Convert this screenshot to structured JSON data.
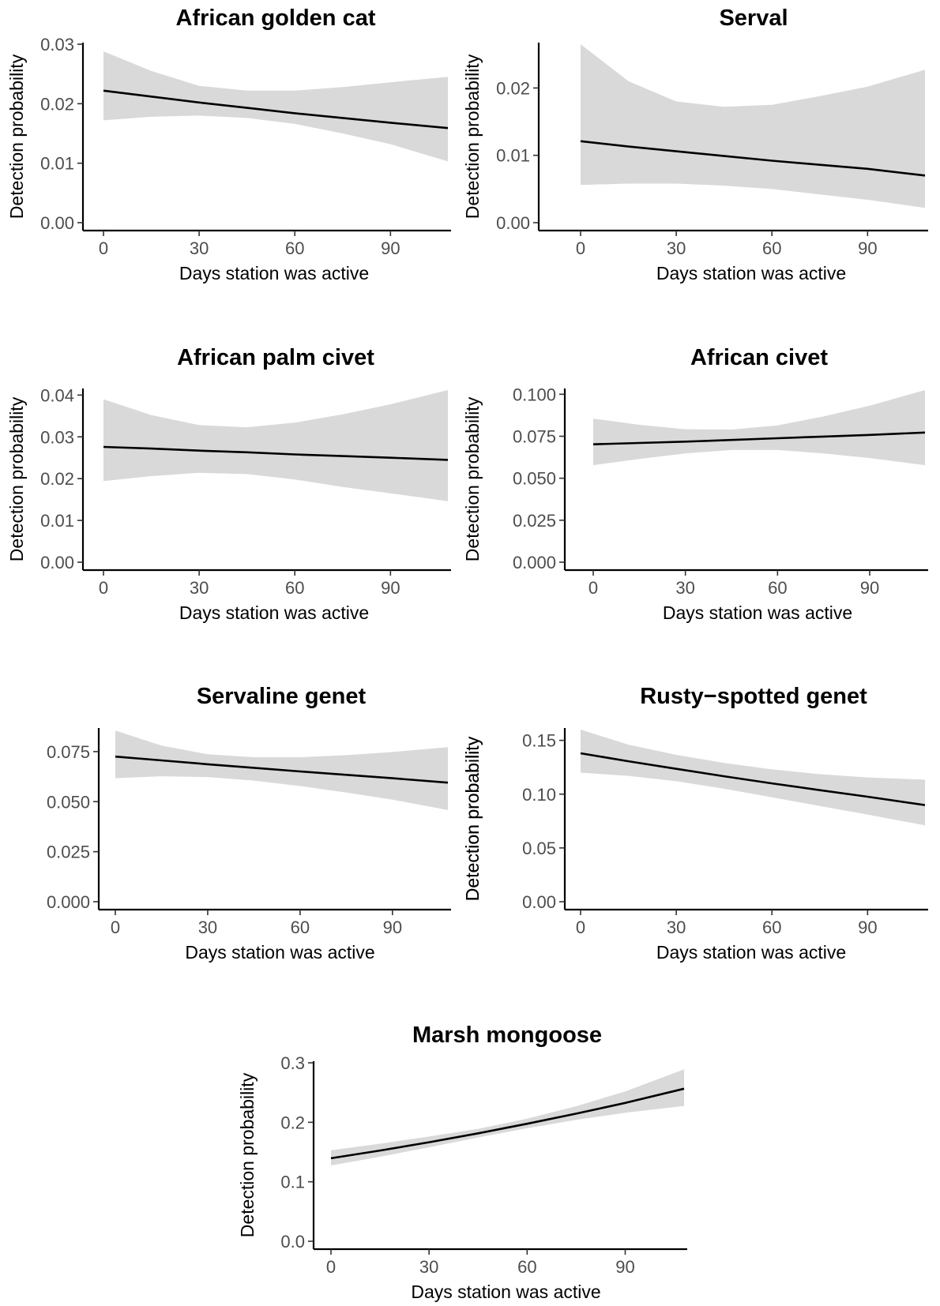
{
  "colors": {
    "band": "#d9d9d9",
    "line": "#000000",
    "axis": "#000000",
    "tick_text": "#4d4d4d"
  },
  "chart_data": [
    {
      "type": "line",
      "title": "African golden cat",
      "xlabel": "Days station was active",
      "ylabel": "Detection probability",
      "xlim": [
        0,
        108
      ],
      "ylim": [
        0,
        0.03
      ],
      "xticks": [
        0,
        30,
        60,
        90
      ],
      "xtick_labels": [
        "0",
        "30",
        "60",
        "90"
      ],
      "yticks": [
        0,
        0.01,
        0.02,
        0.03
      ],
      "ytick_labels": [
        "0.00",
        "0.01",
        "0.02",
        "0.03"
      ],
      "x": [
        0,
        15,
        30,
        45,
        60,
        75,
        90,
        108
      ],
      "y": [
        0.0222,
        0.0212,
        0.0202,
        0.0193,
        0.0184,
        0.0176,
        0.0168,
        0.0159
      ],
      "lower": [
        0.0172,
        0.0178,
        0.018,
        0.0176,
        0.0166,
        0.015,
        0.0132,
        0.0103
      ],
      "upper": [
        0.0288,
        0.0255,
        0.023,
        0.0222,
        0.0222,
        0.0228,
        0.0236,
        0.0245
      ],
      "grid": false
    },
    {
      "type": "line",
      "title": "Serval",
      "xlabel": "Days station was active",
      "ylabel": "Detection probability",
      "xlim": [
        0,
        108
      ],
      "ylim": [
        0,
        0.0265
      ],
      "xticks": [
        0,
        30,
        60,
        90
      ],
      "xtick_labels": [
        "0",
        "30",
        "60",
        "90"
      ],
      "yticks": [
        0,
        0.01,
        0.02
      ],
      "ytick_labels": [
        "0.00",
        "0.01",
        "0.02"
      ],
      "x": [
        0,
        15,
        30,
        45,
        60,
        75,
        90,
        108
      ],
      "y": [
        0.0121,
        0.0113,
        0.0106,
        0.0099,
        0.0092,
        0.0086,
        0.008,
        0.007
      ],
      "lower": [
        0.0056,
        0.0058,
        0.0058,
        0.0055,
        0.005,
        0.0042,
        0.0034,
        0.0022
      ],
      "upper": [
        0.0265,
        0.021,
        0.018,
        0.0172,
        0.0175,
        0.0188,
        0.0202,
        0.0227
      ],
      "grid": false
    },
    {
      "type": "line",
      "title": "African palm civet",
      "xlabel": "Days station was active",
      "ylabel": "Detection probability",
      "xlim": [
        0,
        108
      ],
      "ylim": [
        0,
        0.0412
      ],
      "xticks": [
        0,
        30,
        60,
        90
      ],
      "xtick_labels": [
        "0",
        "30",
        "60",
        "90"
      ],
      "yticks": [
        0,
        0.01,
        0.02,
        0.03,
        0.04
      ],
      "ytick_labels": [
        "0.00",
        "0.01",
        "0.02",
        "0.03",
        "0.04"
      ],
      "x": [
        0,
        15,
        30,
        45,
        60,
        75,
        90,
        108
      ],
      "y": [
        0.0276,
        0.0272,
        0.0267,
        0.0263,
        0.0258,
        0.0254,
        0.025,
        0.0245
      ],
      "lower": [
        0.0194,
        0.0206,
        0.0214,
        0.0211,
        0.0198,
        0.018,
        0.0165,
        0.0146
      ],
      "upper": [
        0.039,
        0.0352,
        0.0328,
        0.0323,
        0.0334,
        0.0354,
        0.0378,
        0.0412
      ],
      "grid": false
    },
    {
      "type": "line",
      "title": "African civet",
      "xlabel": "Days station was active",
      "ylabel": "Detection probability",
      "xlim": [
        0,
        108
      ],
      "ylim": [
        0,
        0.1025
      ],
      "xticks": [
        0,
        30,
        60,
        90
      ],
      "xtick_labels": [
        "0",
        "30",
        "60",
        "90"
      ],
      "yticks": [
        0,
        0.025,
        0.05,
        0.075,
        0.1
      ],
      "ytick_labels": [
        "0.000",
        "0.025",
        "0.050",
        "0.075",
        "0.100"
      ],
      "x": [
        0,
        15,
        30,
        45,
        60,
        75,
        90,
        108
      ],
      "y": [
        0.0702,
        0.071,
        0.0718,
        0.0728,
        0.0738,
        0.0748,
        0.0758,
        0.0772
      ],
      "lower": [
        0.0578,
        0.0615,
        0.0648,
        0.0668,
        0.0668,
        0.0648,
        0.062,
        0.0578
      ],
      "upper": [
        0.0855,
        0.0818,
        0.0792,
        0.079,
        0.0815,
        0.0868,
        0.0932,
        0.1025
      ],
      "grid": false
    },
    {
      "type": "line",
      "title": "Servaline genet",
      "xlabel": "Days station was active",
      "ylabel": "Detection probability",
      "xlim": [
        0,
        108
      ],
      "ylim": [
        0,
        0.086
      ],
      "xticks": [
        0,
        30,
        60,
        90
      ],
      "xtick_labels": [
        "0",
        "30",
        "60",
        "90"
      ],
      "yticks": [
        0,
        0.025,
        0.05,
        0.075
      ],
      "ytick_labels": [
        "0.000",
        "0.025",
        "0.050",
        "0.075"
      ],
      "x": [
        0,
        15,
        30,
        45,
        60,
        75,
        90,
        108
      ],
      "y": [
        0.0725,
        0.0706,
        0.0687,
        0.0669,
        0.0651,
        0.0634,
        0.0617,
        0.0595
      ],
      "lower": [
        0.0617,
        0.0627,
        0.0623,
        0.0605,
        0.0578,
        0.0545,
        0.051,
        0.0458
      ],
      "upper": [
        0.0855,
        0.078,
        0.0737,
        0.0722,
        0.0722,
        0.0732,
        0.0748,
        0.0772
      ],
      "grid": false
    },
    {
      "type": "line",
      "title": "Rusty−spotted genet",
      "xlabel": "Days station was active",
      "ylabel": "Detection probability",
      "xlim": [
        0,
        108
      ],
      "ylim": [
        0,
        0.16
      ],
      "xticks": [
        0,
        30,
        60,
        90
      ],
      "xtick_labels": [
        "0",
        "30",
        "60",
        "90"
      ],
      "yticks": [
        0,
        0.05,
        0.1,
        0.15
      ],
      "ytick_labels": [
        "0.00",
        "0.05",
        "0.10",
        "0.15"
      ],
      "x": [
        0,
        15,
        30,
        45,
        60,
        75,
        90,
        108
      ],
      "y": [
        0.138,
        0.1306,
        0.1235,
        0.1166,
        0.11,
        0.1037,
        0.0976,
        0.0898
      ],
      "lower": [
        0.12,
        0.117,
        0.112,
        0.105,
        0.097,
        0.089,
        0.081,
        0.071
      ],
      "upper": [
        0.16,
        0.146,
        0.1365,
        0.129,
        0.123,
        0.1185,
        0.1155,
        0.1135
      ],
      "grid": false
    },
    {
      "type": "line",
      "title": "Marsh mongoose",
      "xlabel": "Days station was active",
      "ylabel": "Detection probability",
      "xlim": [
        0,
        108
      ],
      "ylim": [
        0,
        0.3
      ],
      "xticks": [
        0,
        30,
        60,
        90
      ],
      "xtick_labels": [
        "0",
        "30",
        "60",
        "90"
      ],
      "yticks": [
        0,
        0.1,
        0.2,
        0.3
      ],
      "ytick_labels": [
        "0.0",
        "0.1",
        "0.2",
        "0.3"
      ],
      "x": [
        0,
        15,
        30,
        45,
        60,
        75,
        90,
        108
      ],
      "y": [
        0.1395,
        0.1525,
        0.1665,
        0.1815,
        0.1975,
        0.2145,
        0.2325,
        0.2565
      ],
      "lower": [
        0.1275,
        0.142,
        0.158,
        0.1745,
        0.19,
        0.204,
        0.216,
        0.2275
      ],
      "upper": [
        0.153,
        0.164,
        0.176,
        0.189,
        0.206,
        0.227,
        0.252,
        0.289
      ],
      "grid": false
    }
  ]
}
